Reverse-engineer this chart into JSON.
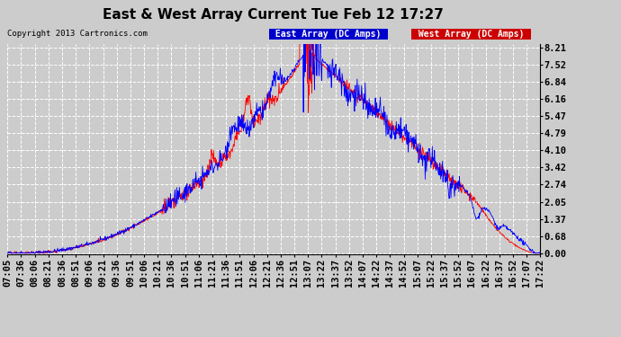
{
  "title": "East & West Array Current Tue Feb 12 17:27",
  "copyright": "Copyright 2013 Cartronics.com",
  "legend_labels": [
    "East Array (DC Amps)",
    "West Array (DC Amps)"
  ],
  "line_colors": [
    "#0000ff",
    "#ff0000"
  ],
  "legend_bg_colors": [
    "#0000cc",
    "#cc0000"
  ],
  "yticks": [
    0.0,
    0.68,
    1.37,
    2.05,
    2.74,
    3.42,
    4.1,
    4.79,
    5.47,
    6.16,
    6.84,
    7.52,
    8.21
  ],
  "ymin": 0.0,
  "ymax": 8.21,
  "background_color": "#cccccc",
  "grid_color": "#ffffff",
  "title_fontsize": 11,
  "axis_fontsize": 7.5,
  "xtick_labels": [
    "07:05",
    "07:36",
    "08:06",
    "08:21",
    "08:36",
    "08:51",
    "09:06",
    "09:21",
    "09:36",
    "09:51",
    "10:06",
    "10:21",
    "10:36",
    "10:51",
    "11:06",
    "11:21",
    "11:36",
    "11:51",
    "12:06",
    "12:21",
    "12:36",
    "12:51",
    "13:07",
    "13:22",
    "13:37",
    "13:52",
    "14:07",
    "14:22",
    "14:37",
    "14:52",
    "15:07",
    "15:22",
    "15:37",
    "15:52",
    "16:07",
    "16:22",
    "16:37",
    "16:52",
    "17:07",
    "17:22"
  ]
}
